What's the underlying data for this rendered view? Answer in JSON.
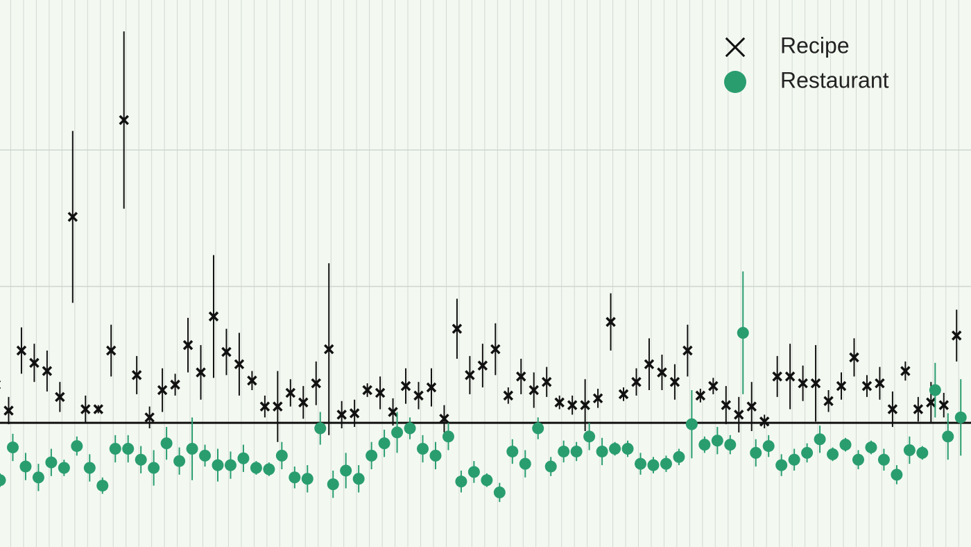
{
  "chart_data": {
    "type": "errorbar",
    "legend": "upper right",
    "grid": true,
    "categories": [
      null,
      null,
      null,
      null,
      null,
      null,
      null,
      null,
      null,
      null,
      null,
      null,
      null,
      null,
      null,
      null,
      null,
      null,
      null,
      null,
      null,
      null,
      null,
      null,
      null,
      null,
      null,
      null,
      null,
      null,
      null,
      null,
      null,
      null,
      null,
      null,
      null,
      null,
      null,
      null,
      null,
      null,
      null,
      null,
      null,
      null,
      null,
      null,
      null,
      null,
      null,
      null,
      null,
      null,
      null,
      null,
      null,
      null,
      null,
      null,
      null,
      null,
      null,
      null,
      null,
      null,
      null,
      null,
      null,
      null,
      null,
      null,
      null,
      null,
      null,
      null
    ],
    "ylim": [
      -0.91,
      3.1
    ],
    "yticks": [
      0,
      1,
      2
    ],
    "series": [
      {
        "name": "Recipe",
        "color": "#111111",
        "marker": "x",
        "values": [
          0.28,
          0.09,
          0.53,
          0.44,
          0.38,
          0.19,
          1.51,
          0.1,
          0.1,
          0.53,
          2.22,
          0.35,
          0.04,
          0.24,
          0.28,
          0.57,
          0.37,
          0.78,
          0.52,
          0.43,
          0.31,
          0.12,
          0.12,
          0.22,
          0.15,
          0.29,
          0.54,
          0.06,
          0.07,
          0.24,
          0.22,
          0.08,
          0.27,
          0.2,
          0.26,
          0.03,
          0.69,
          0.35,
          0.42,
          0.54,
          0.2,
          0.34,
          0.24,
          0.3,
          0.15,
          0.13,
          0.13,
          0.18,
          0.74,
          0.21,
          0.3,
          0.43,
          0.37,
          0.3,
          0.53,
          0.2,
          0.27,
          0.13,
          0.06,
          0.12,
          0.01,
          0.34,
          0.34,
          0.29,
          0.29,
          0.16,
          0.27,
          0.48,
          0.27,
          0.29,
          0.1,
          0.38,
          0.1,
          0.15,
          0.13,
          0.64
        ],
        "errors": [
          0.1,
          0.1,
          0.17,
          0.14,
          0.15,
          0.11,
          0.63,
          0.1,
          0.03,
          0.19,
          0.65,
          0.14,
          0.08,
          0.16,
          0.08,
          0.2,
          0.2,
          0.45,
          0.17,
          0.23,
          0.07,
          0.08,
          0.26,
          0.1,
          0.12,
          0.16,
          0.63,
          0.1,
          0.1,
          0.05,
          0.12,
          0.1,
          0.13,
          0.1,
          0.14,
          0.1,
          0.22,
          0.14,
          0.16,
          0.19,
          0.06,
          0.13,
          0.13,
          0.11,
          0.05,
          0.07,
          0.19,
          0.07,
          0.21,
          0.05,
          0.1,
          0.19,
          0.13,
          0.13,
          0.19,
          0.05,
          0.06,
          0.14,
          0.13,
          0.18,
          0.05,
          0.15,
          0.24,
          0.13,
          0.28,
          0.08,
          0.1,
          0.14,
          0.08,
          0.12,
          0.13,
          0.07,
          0.09,
          0.15,
          0.09,
          0.19
        ]
      },
      {
        "name": "Restaurant",
        "color": "#2a9d6f",
        "marker": "o",
        "values": [
          -0.42,
          -0.18,
          -0.32,
          -0.4,
          -0.29,
          -0.33,
          -0.17,
          -0.33,
          -0.46,
          -0.19,
          -0.19,
          -0.27,
          -0.33,
          -0.15,
          -0.28,
          -0.19,
          -0.24,
          -0.31,
          -0.31,
          -0.26,
          -0.33,
          -0.34,
          -0.24,
          -0.4,
          -0.41,
          -0.04,
          -0.45,
          -0.35,
          -0.41,
          -0.24,
          -0.15,
          -0.07,
          -0.04,
          -0.19,
          -0.24,
          -0.1,
          -0.43,
          -0.36,
          -0.42,
          -0.51,
          -0.21,
          -0.3,
          -0.04,
          -0.32,
          -0.21,
          -0.21,
          -0.1,
          -0.21,
          -0.19,
          -0.19,
          -0.3,
          -0.31,
          -0.3,
          -0.25,
          -0.01,
          -0.16,
          -0.13,
          -0.16,
          0.66,
          -0.22,
          -0.17,
          -0.31,
          -0.27,
          -0.22,
          -0.12,
          -0.23,
          -0.16,
          -0.27,
          -0.18,
          -0.27,
          -0.38,
          -0.2,
          -0.22,
          0.24,
          -0.1,
          0.04
        ],
        "errors": [
          0.05,
          0.1,
          0.1,
          0.1,
          0.1,
          0.06,
          0.07,
          0.1,
          0.06,
          0.1,
          0.1,
          0.1,
          0.13,
          0.12,
          0.1,
          0.23,
          0.08,
          0.12,
          0.1,
          0.1,
          0.05,
          0.05,
          0.1,
          0.08,
          0.1,
          0.12,
          0.1,
          0.13,
          0.1,
          0.1,
          0.1,
          0.15,
          0.08,
          0.1,
          0.1,
          0.1,
          0.08,
          0.08,
          0.05,
          0.07,
          0.09,
          0.1,
          0.08,
          0.07,
          0.08,
          0.07,
          0.1,
          0.1,
          0.05,
          0.06,
          0.08,
          0.06,
          0.06,
          0.06,
          0.25,
          0.06,
          0.1,
          0.07,
          0.45,
          0.1,
          0.08,
          0.08,
          0.08,
          0.07,
          0.1,
          0.05,
          0.05,
          0.07,
          0.05,
          0.08,
          0.07,
          0.1,
          0.05,
          0.2,
          0.17,
          0.28
        ]
      }
    ]
  }
}
